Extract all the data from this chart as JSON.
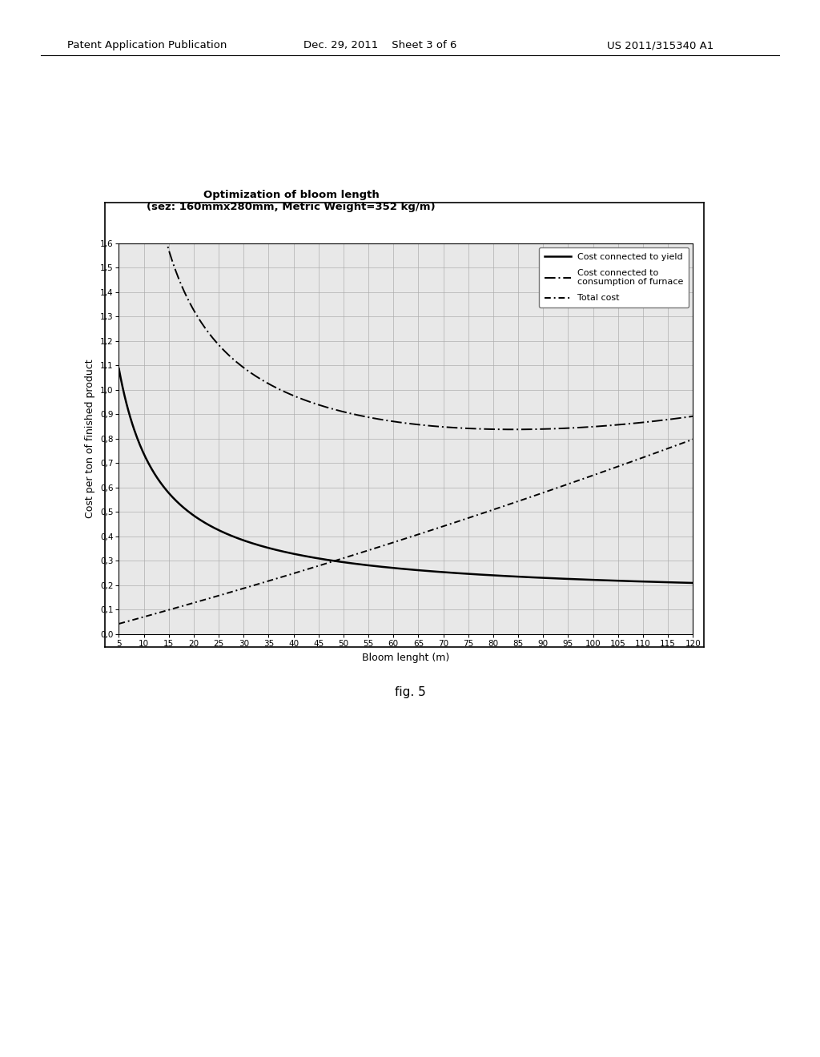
{
  "title_line1": "Optimization of bloom length",
  "title_line2": "(sez: 160mmx280mm, Metric Weight=352 kg/m)",
  "xlabel": "Bloom lenght (m)",
  "ylabel": "Cost per ton of finished product",
  "xmin": 5,
  "xmax": 120,
  "ymin": 0.0,
  "ymax": 1.6,
  "xticks": [
    5,
    10,
    15,
    20,
    25,
    30,
    35,
    40,
    45,
    50,
    55,
    60,
    65,
    70,
    75,
    80,
    85,
    90,
    95,
    100,
    105,
    110,
    115,
    120
  ],
  "yticks": [
    0.0,
    0.1,
    0.2,
    0.3,
    0.4,
    0.5,
    0.6,
    0.7,
    0.8,
    0.9,
    1.0,
    1.1,
    1.2,
    1.3,
    1.4,
    1.5,
    1.6
  ],
  "legend_labels": [
    "Cost connected to yield",
    "Cost connected to\nconsumption of furnace",
    "Total cost"
  ],
  "background_color": "#ffffff",
  "plot_bg_color": "#e8e8e8",
  "grid_color": "#aaaaaa",
  "line_color": "#000000",
  "fig_caption": "fig. 5",
  "header_left": "Patent Application Publication",
  "header_mid": "Dec. 29, 2011    Sheet 3 of 6",
  "header_right": "US 2011/315340 A1"
}
